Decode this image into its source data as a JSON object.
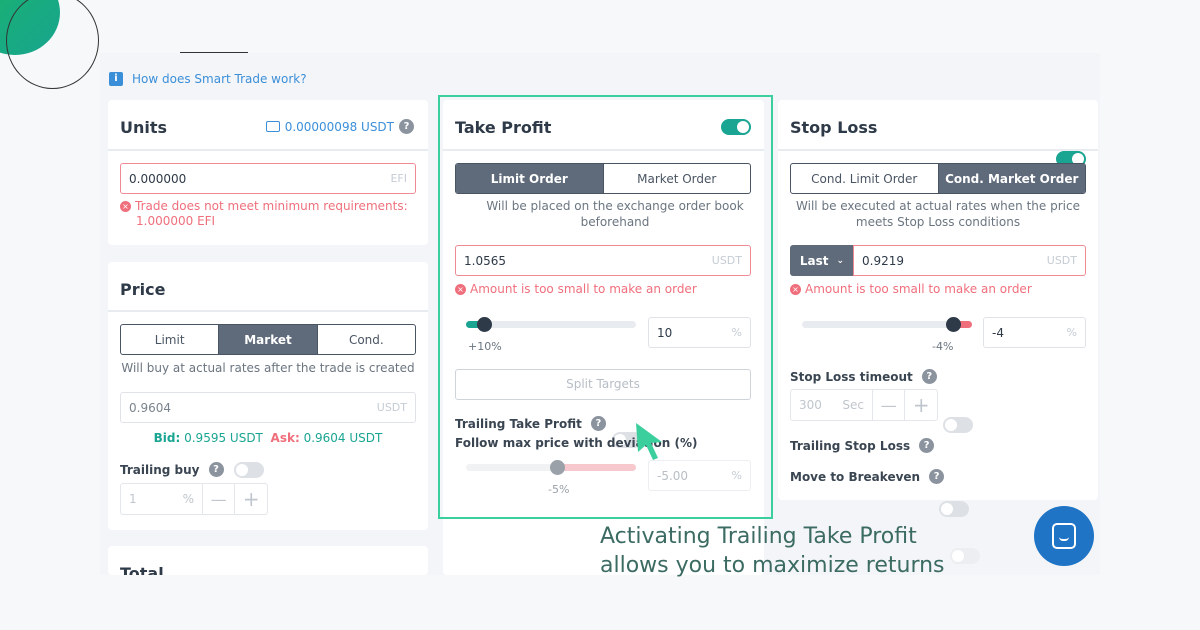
{
  "help_link": "How does Smart Trade work?",
  "units": {
    "title": "Units",
    "balance": "0.00000098 USDT",
    "value": "0.000000",
    "unit": "EFI",
    "error": "Trade does not meet minimum requirements:",
    "error2": "1.000000 EFI"
  },
  "price": {
    "title": "Price",
    "tabs": [
      "Limit",
      "Market",
      "Cond."
    ],
    "active_tab": "Market",
    "note": "Will buy at actual rates after the trade is created",
    "value": "0.9604",
    "unit": "USDT",
    "bid_label": "Bid:",
    "bid": "0.9595 USDT",
    "ask_label": "Ask:",
    "ask": "0.9604 USDT",
    "trailing_label": "Trailing buy",
    "trailing_value": "1",
    "trailing_unit": "%",
    "trailing_on": false
  },
  "total": {
    "title": "Total"
  },
  "take_profit": {
    "title": "Take Profit",
    "enabled": true,
    "tabs": [
      "Limit Order",
      "Market Order"
    ],
    "active_tab": "Limit Order",
    "note": "Will be placed on the exchange order book beforehand",
    "value": "1.0565",
    "unit": "USDT",
    "error": "Amount is too small to make an order",
    "slider_label": "+10%",
    "percent_value": "10",
    "percent_unit": "%",
    "split_label": "Split Targets",
    "trailing_label": "Trailing Take Profit",
    "trailing_on": false,
    "deviation_label": "Follow max price with deviation (%)",
    "deviation_slider_label": "-5%",
    "deviation_value": "-5.00",
    "deviation_unit": "%"
  },
  "stop_loss": {
    "title": "Stop Loss",
    "enabled": true,
    "tabs": [
      "Cond. Limit Order",
      "Cond. Market Order"
    ],
    "active_tab": "Cond. Market Order",
    "note": "Will be executed at actual rates when the price meets Stop Loss conditions",
    "price_type": "Last",
    "value": "0.9219",
    "unit": "USDT",
    "error": "Amount is too small to make an order",
    "slider_label": "-4%",
    "percent_value": "-4",
    "percent_unit": "%",
    "timeout_label": "Stop Loss timeout",
    "timeout_on": false,
    "timeout_value": "300",
    "timeout_unit": "Sec",
    "trailing_label": "Trailing Stop Loss",
    "trailing_on": false,
    "breakeven_label": "Move to Breakeven",
    "breakeven_on": false
  },
  "caption": {
    "line1": "Activating Trailing Take Profit",
    "line2": "allows you to maximize returns"
  },
  "colors": {
    "accent": "#1aa592",
    "highlight": "#3ccf9e",
    "error": "#ef6f7c",
    "link": "#3b8fd9",
    "chat": "#1f74c6"
  }
}
